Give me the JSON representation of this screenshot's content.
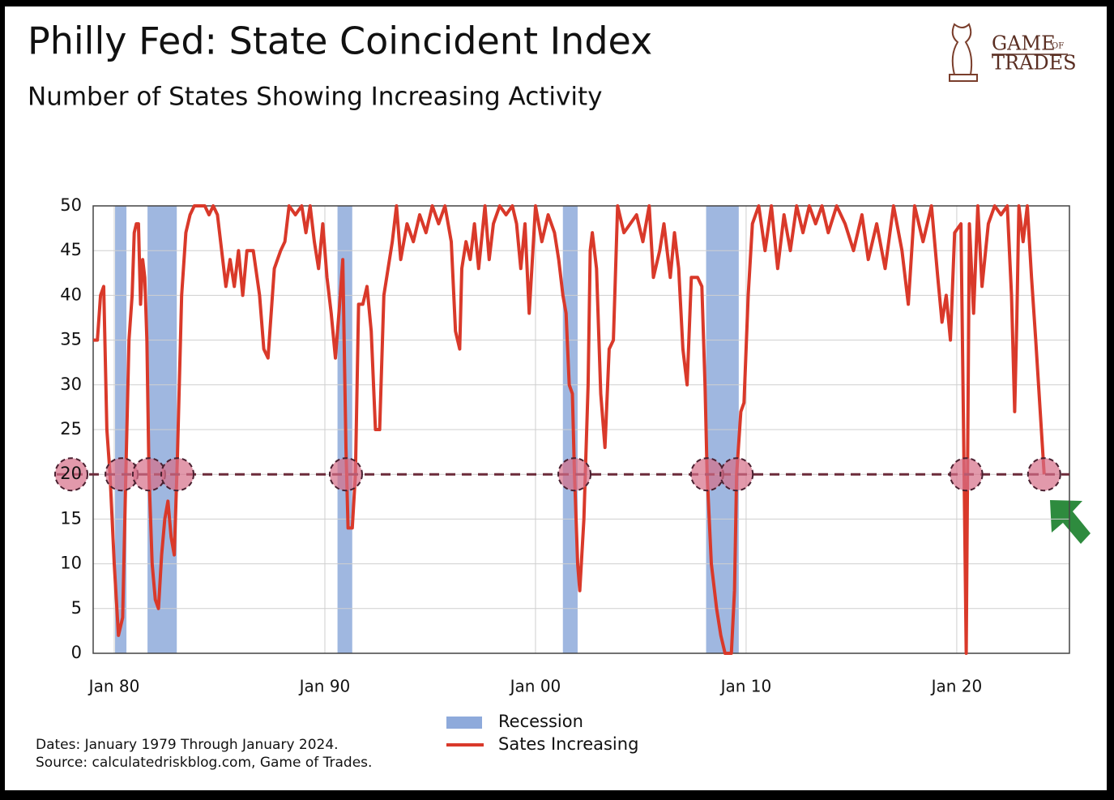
{
  "chart_data": {
    "type": "line",
    "title": "Philly Fed: State Coincident Index",
    "subtitle": "Number of States Showing Increasing Activity",
    "x": [
      1979.0,
      1979.2,
      1979.35,
      1979.5,
      1979.65,
      1979.8,
      1980.0,
      1980.2,
      1980.4,
      1980.55,
      1980.7,
      1980.85,
      1980.95,
      1981.05,
      1981.15,
      1981.25,
      1981.35,
      1981.45,
      1981.55,
      1981.65,
      1981.8,
      1981.95,
      1982.1,
      1982.25,
      1982.4,
      1982.55,
      1982.7,
      1982.85,
      1983.0,
      1983.2,
      1983.4,
      1983.6,
      1983.8,
      1984.3,
      1984.5,
      1984.7,
      1984.9,
      1985.1,
      1985.3,
      1985.5,
      1985.7,
      1985.9,
      1986.1,
      1986.3,
      1986.6,
      1986.9,
      1987.1,
      1987.3,
      1987.6,
      1987.9,
      1988.1,
      1988.3,
      1988.6,
      1988.9,
      1989.1,
      1989.3,
      1989.5,
      1989.7,
      1989.9,
      1990.1,
      1990.3,
      1990.5,
      1990.7,
      1990.85,
      1991.0,
      1991.1,
      1991.3,
      1991.45,
      1991.6,
      1991.8,
      1992.0,
      1992.2,
      1992.4,
      1992.6,
      1992.8,
      1993.0,
      1993.2,
      1993.4,
      1993.6,
      1993.9,
      1994.2,
      1994.5,
      1994.8,
      1995.1,
      1995.4,
      1995.7,
      1996.0,
      1996.2,
      1996.4,
      1996.5,
      1996.7,
      1996.9,
      1997.1,
      1997.3,
      1997.6,
      1997.8,
      1998.0,
      1998.3,
      1998.6,
      1998.9,
      1999.1,
      1999.3,
      1999.5,
      1999.7,
      2000.0,
      2000.3,
      2000.6,
      2000.9,
      2001.1,
      2001.3,
      2001.45,
      2001.6,
      2001.75,
      2001.85,
      2002.0,
      2002.1,
      2002.3,
      2002.5,
      2002.6,
      2002.7,
      2002.9,
      2003.1,
      2003.3,
      2003.5,
      2003.7,
      2003.9,
      2004.2,
      2004.5,
      2004.8,
      2005.1,
      2005.4,
      2005.6,
      2005.9,
      2006.1,
      2006.4,
      2006.6,
      2006.8,
      2007.0,
      2007.2,
      2007.4,
      2007.7,
      2007.9,
      2008.05,
      2008.15,
      2008.35,
      2008.6,
      2008.8,
      2009.0,
      2009.3,
      2009.45,
      2009.55,
      2009.75,
      2009.9,
      2010.1,
      2010.3,
      2010.6,
      2010.9,
      2011.2,
      2011.5,
      2011.8,
      2012.1,
      2012.4,
      2012.7,
      2013.0,
      2013.3,
      2013.6,
      2013.9,
      2014.3,
      2014.7,
      2015.1,
      2015.5,
      2015.8,
      2016.2,
      2016.6,
      2017.0,
      2017.4,
      2017.7,
      2018.0,
      2018.4,
      2018.8,
      2019.1,
      2019.3,
      2019.5,
      2019.7,
      2019.9,
      2020.2,
      2020.35,
      2020.45,
      2020.6,
      2020.8,
      2021.0,
      2021.2,
      2021.5,
      2021.8,
      2022.1,
      2022.4,
      2022.6,
      2022.75,
      2022.85,
      2022.95,
      2023.15,
      2023.35,
      2023.55,
      2023.75,
      2024.15
    ],
    "series": [
      {
        "name": "Sates Increasing",
        "color": "#d9392a",
        "values": [
          35,
          35,
          40,
          41,
          25,
          20,
          10,
          2,
          4,
          20,
          35,
          40,
          47,
          48,
          48,
          39,
          44,
          42,
          35,
          20,
          10,
          6,
          5,
          11,
          15,
          17,
          13,
          11,
          22,
          40,
          47,
          49,
          50,
          50,
          49,
          50,
          49,
          45,
          41,
          44,
          41,
          45,
          40,
          45,
          45,
          40,
          34,
          33,
          43,
          45,
          46,
          50,
          49,
          50,
          47,
          50,
          46,
          43,
          48,
          42,
          38,
          33,
          39,
          44,
          23,
          14,
          14,
          20,
          39,
          39,
          41,
          36,
          25,
          25,
          40,
          43,
          46,
          50,
          44,
          48,
          46,
          49,
          47,
          50,
          48,
          50,
          46,
          36,
          34,
          43,
          46,
          44,
          48,
          43,
          50,
          44,
          48,
          50,
          49,
          50,
          48,
          43,
          48,
          38,
          50,
          46,
          49,
          47,
          44,
          40,
          38,
          30,
          29,
          20,
          10,
          7,
          15,
          30,
          45,
          47,
          43,
          29,
          23,
          34,
          35,
          50,
          47,
          48,
          49,
          46,
          50,
          42,
          45,
          48,
          42,
          47,
          43,
          34,
          30,
          42,
          42,
          41,
          30,
          20,
          10,
          5,
          2,
          0,
          0,
          7,
          20,
          27,
          28,
          40,
          48,
          50,
          45,
          50,
          43,
          49,
          45,
          50,
          47,
          50,
          48,
          50,
          47,
          50,
          48,
          45,
          49,
          44,
          48,
          43,
          50,
          45,
          39,
          50,
          46,
          50,
          42,
          37,
          40,
          35,
          47,
          48,
          20,
          0,
          48,
          38,
          50,
          41,
          48,
          50,
          49,
          50,
          40,
          27,
          37,
          50,
          46,
          50,
          42,
          35,
          20
        ]
      }
    ],
    "recessions": {
      "name": "Recession",
      "color": "#8eaadb",
      "spans": [
        [
          1980.04,
          1980.58
        ],
        [
          1981.58,
          1982.97
        ],
        [
          1990.6,
          1991.3
        ],
        [
          2001.3,
          2002.0
        ],
        [
          2008.1,
          2009.65
        ]
      ]
    },
    "threshold": 20,
    "highlights": {
      "x": [
        1980.35,
        1981.65,
        1983.0,
        1991.0,
        2001.85,
        2008.15,
        2009.55,
        2020.45,
        2024.15
      ],
      "y": 20
    },
    "xlim": [
      1979,
      2025.35
    ],
    "xticks": [
      {
        "value": 1980,
        "label": "Jan 80"
      },
      {
        "value": 1990,
        "label": "Jan 90"
      },
      {
        "value": 2000,
        "label": "Jan 00"
      },
      {
        "value": 2010,
        "label": "Jan 10"
      },
      {
        "value": 2020,
        "label": "Jan 20"
      }
    ],
    "ylim": [
      0,
      50
    ],
    "yticks": [
      0,
      5,
      10,
      15,
      20,
      25,
      30,
      35,
      40,
      45,
      50
    ],
    "grid": true,
    "notes": [
      "Dates: January 1979 Through January 2024.",
      "Source: calculatedriskblog.com, Game of Trades."
    ]
  },
  "logo": {
    "line1": "GAME",
    "small": "OF",
    "line2": "TRADES"
  }
}
